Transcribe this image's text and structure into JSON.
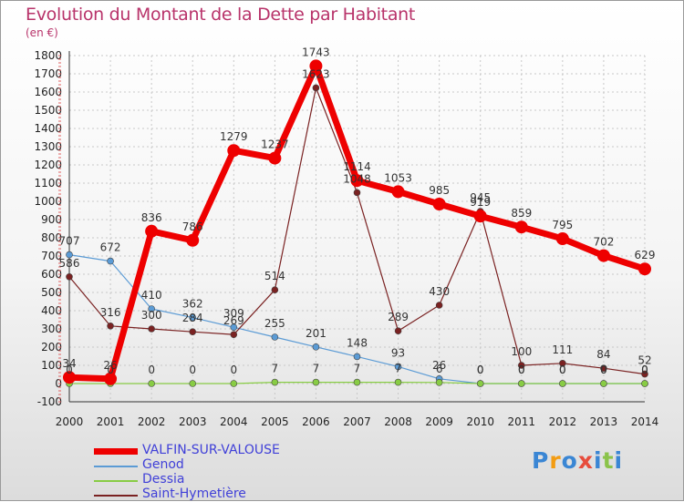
{
  "title": "Evolution du Montant de la Dette par Habitant",
  "unit_label": "(en €)",
  "logo": {
    "text": "Proxiti",
    "colors": [
      "#3a86d4",
      "#f39c12",
      "#3a86d4",
      "#e74c3c",
      "#3a86d4",
      "#8bc34a",
      "#3a86d4"
    ]
  },
  "chart_data": {
    "type": "line",
    "title": "Evolution du Montant de la Dette par Habitant",
    "ylabel": "(en €)",
    "xlabel": "",
    "x": [
      "2000",
      "2001",
      "2002",
      "2003",
      "2004",
      "2005",
      "2006",
      "2007",
      "2008",
      "2009",
      "2010",
      "2011",
      "2012",
      "2013",
      "2014"
    ],
    "yticks": [
      -100,
      0,
      100,
      200,
      300,
      400,
      500,
      600,
      700,
      800,
      900,
      1000,
      1100,
      1200,
      1300,
      1400,
      1500,
      1600,
      1700,
      1800
    ],
    "ylim": [
      -100,
      1800
    ],
    "grid": true,
    "legend_position": "bottom-left",
    "series": [
      {
        "name": "VALFIN-SUR-VALOUSE",
        "color": "#ee0000",
        "values": [
          34,
          26,
          836,
          786,
          1279,
          1237,
          1743,
          1114,
          1053,
          985,
          919,
          859,
          795,
          702,
          629
        ],
        "labels": [
          "34",
          "26",
          "836",
          "786",
          "1279",
          "1237",
          "1743",
          "1114",
          "1053",
          "985",
          "919",
          "859",
          "795",
          "702",
          "629"
        ]
      },
      {
        "name": "Genod",
        "color": "#5b9bd5",
        "values": [
          707,
          672,
          410,
          362,
          309,
          255,
          201,
          148,
          93,
          26,
          0,
          0,
          0,
          0,
          0
        ],
        "labels": [
          "707",
          "672",
          "410",
          "362",
          "309",
          "255",
          "201",
          "148",
          "93",
          "26",
          "0",
          "0",
          "0",
          "0",
          "0"
        ]
      },
      {
        "name": "Dessia",
        "color": "#88cc44",
        "values": [
          0,
          0,
          0,
          0,
          0,
          7,
          7,
          7,
          7,
          6,
          0,
          0,
          0,
          0,
          0
        ],
        "labels": [
          "0",
          "0",
          "0",
          "0",
          "0",
          "7",
          "7",
          "7",
          "7",
          "6",
          "0",
          "0",
          "0",
          "0",
          "0"
        ]
      },
      {
        "name": "Saint-Hymetière",
        "color": "#7a2222",
        "values": [
          586,
          316,
          300,
          284,
          269,
          514,
          1623,
          1048,
          289,
          430,
          945,
          100,
          111,
          84,
          52
        ],
        "labels": [
          "586",
          "316",
          "300",
          "284",
          "269",
          "514",
          "1623",
          "1048",
          "289",
          "430",
          "945",
          "100",
          "111",
          "84",
          "52"
        ]
      }
    ]
  }
}
